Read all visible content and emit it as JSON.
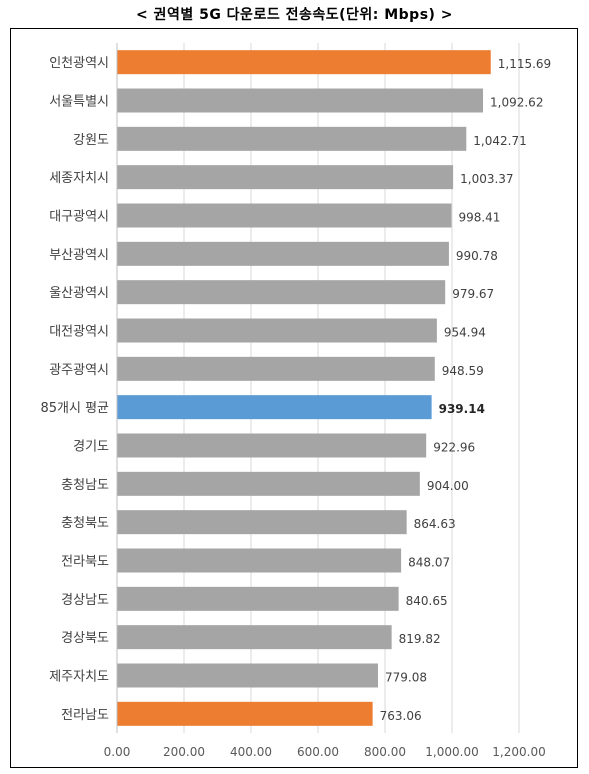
{
  "chart_data": {
    "type": "bar",
    "orientation": "horizontal",
    "title": "< 권역별 5G 다운로드 전송속도(단위: Mbps) >",
    "categories": [
      "인천광역시",
      "서울특별시",
      "강원도",
      "세종자치시",
      "대구광역시",
      "부산광역시",
      "울산광역시",
      "대전광역시",
      "광주광역시",
      "85개시 평균",
      "경기도",
      "충청남도",
      "충청북도",
      "전라북도",
      "경상남도",
      "경상북도",
      "제주자치도",
      "전라남도"
    ],
    "values": [
      1115.69,
      1092.62,
      1042.71,
      1003.37,
      998.41,
      990.78,
      979.67,
      954.94,
      948.59,
      939.14,
      922.96,
      904.0,
      864.63,
      848.07,
      840.65,
      819.82,
      779.08,
      763.06
    ],
    "value_labels": [
      "1,115.69",
      "1,092.62",
      "1,042.71",
      "1,003.37",
      "998.41",
      "990.78",
      "979.67",
      "954.94",
      "948.59",
      "939.14",
      "922.96",
      "904.00",
      "864.63",
      "848.07",
      "840.65",
      "819.82",
      "779.08",
      "763.06"
    ],
    "bar_colors": [
      "#ED7D31",
      "#A5A5A5",
      "#A5A5A5",
      "#A5A5A5",
      "#A5A5A5",
      "#A5A5A5",
      "#A5A5A5",
      "#A5A5A5",
      "#A5A5A5",
      "#5B9BD5",
      "#A5A5A5",
      "#A5A5A5",
      "#A5A5A5",
      "#A5A5A5",
      "#A5A5A5",
      "#A5A5A5",
      "#A5A5A5",
      "#ED7D31"
    ],
    "bold_label_index": 9,
    "xlim": [
      0,
      1200
    ],
    "xticks": [
      "0.00",
      "200.00",
      "400.00",
      "600.00",
      "800.00",
      "1,000.00",
      "1,200.00"
    ],
    "xtick_values": [
      0,
      200,
      400,
      600,
      800,
      1000,
      1200
    ],
    "grid": true,
    "legend": "none"
  }
}
